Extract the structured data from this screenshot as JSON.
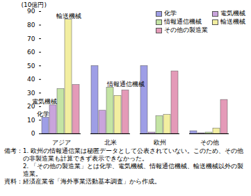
{
  "chart_data": {
    "type": "bar",
    "y_label": "(10億円)",
    "categories": [
      "アジア",
      "北米",
      "欧州",
      "その他"
    ],
    "series": [
      {
        "name": "化学",
        "color": "#9e9ee6",
        "values": [
          12,
          50,
          50,
          2
        ]
      },
      {
        "name": "電気機械",
        "color": "#c9a4dc",
        "values": [
          21,
          17,
          1,
          0.5
        ]
      },
      {
        "name": "情報通信機械",
        "color": "#c4e4a4",
        "values": [
          33,
          34,
          13,
          1
        ]
      },
      {
        "name": "輸送機械",
        "color": "#f2eea0",
        "values": [
          84,
          28,
          14,
          4
        ]
      },
      {
        "name": "その他の製造業",
        "color": "#e49ab8",
        "values": [
          36,
          32,
          46,
          25
        ]
      }
    ],
    "ylim": [
      0,
      90
    ],
    "yticks": [
      0,
      10,
      20,
      30,
      40,
      50,
      60,
      70,
      80,
      90
    ],
    "legend": "top-right",
    "annotations": [
      {
        "text": "輸送機械",
        "category": "アジア",
        "series": "輸送機械"
      },
      {
        "text": "電気機械",
        "category": "アジア",
        "series": "電気機械"
      },
      {
        "text": "化学",
        "category": "アジア",
        "series": "化学"
      },
      {
        "text": "情報通信機械",
        "category": "北米",
        "series": "情報通信機械"
      }
    ],
    "notes_label": "備考：",
    "notes": [
      "1. 欧州の情報通信業は秘匿データとして公表されていない。このため、その他の非製造業も計算できず表示できなかった。",
      "2. 「その他の製造業」とは化学、電気機械、情報通信機械、輸送機械以外の製造業。"
    ],
    "source": "資料：経済産業省「海外事業活動基本調査」から作成。"
  }
}
